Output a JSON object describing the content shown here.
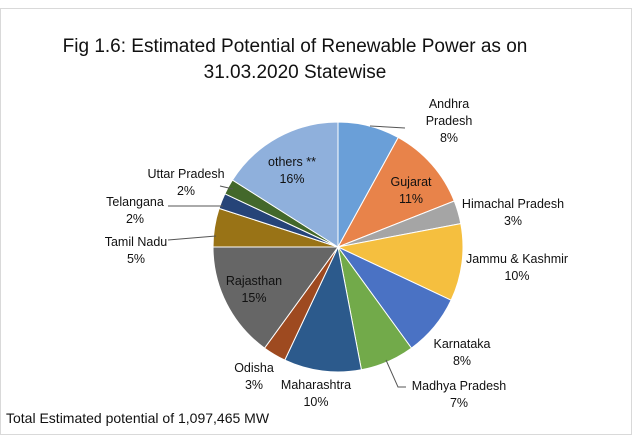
{
  "chart_data": {
    "type": "pie",
    "title": "Fig 1.6: Estimated Potential of Renewable Power as on 31.03.2020 Statewise",
    "note": "Total Estimated potential of 1,097,465 MW",
    "categories": [
      "Andhra Pradesh",
      "Gujarat",
      "Himachal Pradesh",
      "Jammu & Kashmir",
      "Karnataka",
      "Madhya Pradesh",
      "Maharashtra",
      "Odisha",
      "Rajasthan",
      "Tamil Nadu",
      "Telangana",
      "Uttar Pradesh",
      "others **"
    ],
    "values": [
      8,
      11,
      3,
      10,
      8,
      7,
      10,
      3,
      15,
      5,
      2,
      2,
      16
    ],
    "value_labels": [
      "8%",
      "11%",
      "3%",
      "10%",
      "8%",
      "7%",
      "10%",
      "3%",
      "15%",
      "5%",
      "2%",
      "2%",
      "16%"
    ],
    "colors": [
      "#6a9fd8",
      "#e8834a",
      "#a5a5a5",
      "#f5bf3f",
      "#4a72c4",
      "#72aa4a",
      "#2c5a8c",
      "#9e4a20",
      "#666666",
      "#997316",
      "#264478",
      "#43682b",
      "#8fb0dc"
    ]
  }
}
